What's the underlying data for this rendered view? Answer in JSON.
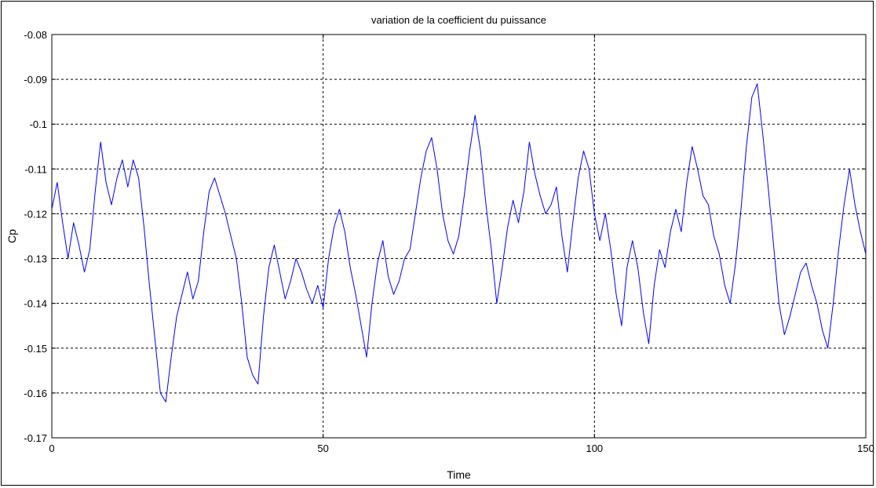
{
  "chart_data": {
    "type": "line",
    "title": "variation de la coefficient du puissance",
    "xlabel": "Time",
    "ylabel": "Cp",
    "xlim": [
      0,
      150
    ],
    "ylim": [
      -0.17,
      -0.08
    ],
    "xticks": [
      0,
      50,
      100,
      150
    ],
    "xtick_labels": [
      "0",
      "50",
      "100",
      "150"
    ],
    "yticks": [
      -0.08,
      -0.09,
      -0.1,
      -0.11,
      -0.12,
      -0.13,
      -0.14,
      -0.15,
      -0.16,
      -0.17
    ],
    "ytick_labels": [
      "-0.08",
      "-0.09",
      "-0.1",
      "-0.11",
      "-0.12",
      "-0.13",
      "-0.14",
      "-0.15",
      "-0.16",
      "-0.17"
    ],
    "grid": true,
    "series": [
      {
        "color": "#0000ff",
        "x": [
          0,
          1,
          2,
          3,
          4,
          5,
          6,
          7,
          8,
          9,
          10,
          11,
          12,
          13,
          14,
          15,
          16,
          17,
          18,
          19,
          20,
          21,
          22,
          23,
          24,
          25,
          26,
          27,
          28,
          29,
          30,
          31,
          32,
          33,
          34,
          35,
          36,
          37,
          38,
          39,
          40,
          41,
          42,
          43,
          44,
          45,
          46,
          47,
          48,
          49,
          50,
          51,
          52,
          53,
          54,
          55,
          56,
          57,
          58,
          59,
          60,
          61,
          62,
          63,
          64,
          65,
          66,
          67,
          68,
          69,
          70,
          71,
          72,
          73,
          74,
          75,
          76,
          77,
          78,
          79,
          80,
          81,
          82,
          83,
          84,
          85,
          86,
          87,
          88,
          89,
          90,
          91,
          92,
          93,
          94,
          95,
          96,
          97,
          98,
          99,
          100,
          101,
          102,
          103,
          104,
          105,
          106,
          107,
          108,
          109,
          110,
          111,
          112,
          113,
          114,
          115,
          116,
          117,
          118,
          119,
          120,
          121,
          122,
          123,
          124,
          125,
          126,
          127,
          128,
          129,
          130,
          131,
          132,
          133,
          134,
          135,
          136,
          137,
          138,
          139,
          140,
          141,
          142,
          143,
          144,
          145,
          146,
          147,
          148,
          149,
          150
        ],
        "y": [
          -0.119,
          -0.113,
          -0.122,
          -0.13,
          -0.122,
          -0.127,
          -0.133,
          -0.128,
          -0.115,
          -0.104,
          -0.113,
          -0.118,
          -0.112,
          -0.108,
          -0.114,
          -0.108,
          -0.112,
          -0.123,
          -0.136,
          -0.148,
          -0.16,
          -0.162,
          -0.152,
          -0.143,
          -0.138,
          -0.133,
          -0.139,
          -0.135,
          -0.124,
          -0.115,
          -0.112,
          -0.116,
          -0.12,
          -0.125,
          -0.13,
          -0.14,
          -0.152,
          -0.156,
          -0.158,
          -0.143,
          -0.132,
          -0.127,
          -0.133,
          -0.139,
          -0.135,
          -0.13,
          -0.133,
          -0.137,
          -0.14,
          -0.136,
          -0.141,
          -0.13,
          -0.123,
          -0.119,
          -0.124,
          -0.132,
          -0.138,
          -0.145,
          -0.152,
          -0.14,
          -0.131,
          -0.126,
          -0.134,
          -0.138,
          -0.135,
          -0.13,
          -0.128,
          -0.12,
          -0.112,
          -0.106,
          -0.103,
          -0.11,
          -0.12,
          -0.126,
          -0.129,
          -0.125,
          -0.116,
          -0.106,
          -0.098,
          -0.106,
          -0.118,
          -0.128,
          -0.14,
          -0.132,
          -0.123,
          -0.117,
          -0.122,
          -0.115,
          -0.104,
          -0.111,
          -0.116,
          -0.12,
          -0.118,
          -0.114,
          -0.125,
          -0.133,
          -0.122,
          -0.112,
          -0.106,
          -0.11,
          -0.12,
          -0.126,
          -0.12,
          -0.128,
          -0.138,
          -0.145,
          -0.132,
          -0.126,
          -0.132,
          -0.142,
          -0.149,
          -0.136,
          -0.128,
          -0.132,
          -0.124,
          -0.119,
          -0.124,
          -0.113,
          -0.105,
          -0.11,
          -0.116,
          -0.118,
          -0.125,
          -0.129,
          -0.136,
          -0.14,
          -0.131,
          -0.119,
          -0.105,
          -0.094,
          -0.091,
          -0.102,
          -0.114,
          -0.127,
          -0.14,
          -0.147,
          -0.143,
          -0.138,
          -0.133,
          -0.131,
          -0.136,
          -0.14,
          -0.146,
          -0.15,
          -0.14,
          -0.128,
          -0.118,
          -0.11,
          -0.118,
          -0.124,
          -0.129
        ]
      }
    ]
  }
}
